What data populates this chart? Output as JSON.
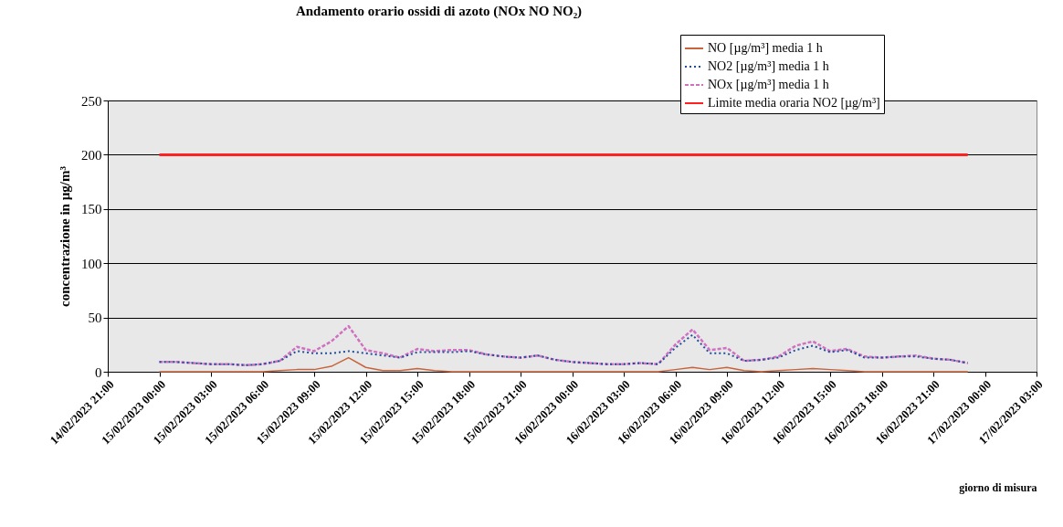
{
  "chart_data": {
    "type": "line",
    "title": "Andamento orario ossidi di azoto (NOx NO NO₂)",
    "xlabel": "giorno di misura",
    "ylabel": "concentrazione in µg/m³",
    "x": [
      "2023-02-15T00:00",
      "2023-02-15T01:00",
      "2023-02-15T02:00",
      "2023-02-15T03:00",
      "2023-02-15T04:00",
      "2023-02-15T05:00",
      "2023-02-15T06:00",
      "2023-02-15T07:00",
      "2023-02-15T08:00",
      "2023-02-15T09:00",
      "2023-02-15T10:00",
      "2023-02-15T11:00",
      "2023-02-15T12:00",
      "2023-02-15T13:00",
      "2023-02-15T14:00",
      "2023-02-15T15:00",
      "2023-02-15T16:00",
      "2023-02-15T17:00",
      "2023-02-15T18:00",
      "2023-02-15T19:00",
      "2023-02-15T20:00",
      "2023-02-15T21:00",
      "2023-02-15T22:00",
      "2023-02-15T23:00",
      "2023-02-16T00:00",
      "2023-02-16T01:00",
      "2023-02-16T02:00",
      "2023-02-16T03:00",
      "2023-02-16T04:00",
      "2023-02-16T05:00",
      "2023-02-16T06:00",
      "2023-02-16T07:00",
      "2023-02-16T08:00",
      "2023-02-16T09:00",
      "2023-02-16T10:00",
      "2023-02-16T11:00",
      "2023-02-16T12:00",
      "2023-02-16T13:00",
      "2023-02-16T14:00",
      "2023-02-16T15:00",
      "2023-02-16T16:00",
      "2023-02-16T17:00",
      "2023-02-16T18:00",
      "2023-02-16T19:00",
      "2023-02-16T20:00",
      "2023-02-16T21:00",
      "2023-02-16T22:00",
      "2023-02-16T23:00"
    ],
    "series": [
      {
        "name": "NO [µg/m³]   media 1 h",
        "color": "#c8643c",
        "line_style": "solid",
        "values": [
          0,
          0,
          0,
          0,
          0,
          0,
          0,
          1,
          2,
          2,
          5,
          13,
          4,
          1,
          1,
          3,
          1,
          0,
          0,
          0,
          0,
          0,
          0,
          0,
          0,
          0,
          0,
          0,
          0,
          0,
          2,
          4,
          2,
          4,
          1,
          0,
          1,
          2,
          3,
          2,
          1,
          0,
          0,
          0,
          0,
          0,
          0,
          0
        ]
      },
      {
        "name": "NO2 [µg/m³]   media 1 h",
        "color": "#1f4e9c",
        "line_style": "dotted",
        "values": [
          9,
          9,
          8,
          7,
          7,
          6,
          7,
          10,
          19,
          17,
          17,
          19,
          17,
          15,
          13,
          18,
          18,
          18,
          19,
          16,
          14,
          13,
          15,
          11,
          9,
          8,
          7,
          7,
          8,
          7,
          22,
          34,
          17,
          17,
          10,
          11,
          13,
          20,
          24,
          18,
          20,
          13,
          13,
          14,
          14,
          12,
          11,
          8
        ]
      },
      {
        "name": "NOx [µg/m³]   media 1 h",
        "color": "#d070c0",
        "line_style": "dashed",
        "values": [
          9,
          9,
          8,
          7,
          7,
          6,
          7,
          10,
          23,
          19,
          28,
          42,
          20,
          17,
          13,
          21,
          19,
          20,
          20,
          16,
          14,
          13,
          15,
          11,
          9,
          8,
          7,
          7,
          8,
          7,
          25,
          39,
          20,
          22,
          10,
          11,
          14,
          24,
          28,
          19,
          21,
          14,
          13,
          14,
          15,
          12,
          11,
          8
        ]
      },
      {
        "name": "Limite media oraria NO2 [µg/m³]",
        "color": "#ff2020",
        "line_style": "solid",
        "x": [
          "2023-02-15T00:00",
          "2023-02-16T23:00"
        ],
        "values": [
          200,
          200
        ]
      }
    ],
    "xlim": [
      "2023-02-14T21:00",
      "2023-02-17T03:00"
    ],
    "xticks": [
      {
        "value": "2023-02-14T21:00",
        "label": "14/02/2023 21:00"
      },
      {
        "value": "2023-02-15T00:00",
        "label": "15/02/2023 00:00"
      },
      {
        "value": "2023-02-15T03:00",
        "label": "15/02/2023 03:00"
      },
      {
        "value": "2023-02-15T06:00",
        "label": "15/02/2023 06:00"
      },
      {
        "value": "2023-02-15T09:00",
        "label": "15/02/2023 09:00"
      },
      {
        "value": "2023-02-15T12:00",
        "label": "15/02/2023 12:00"
      },
      {
        "value": "2023-02-15T15:00",
        "label": "15/02/2023 15:00"
      },
      {
        "value": "2023-02-15T18:00",
        "label": "15/02/2023 18:00"
      },
      {
        "value": "2023-02-15T21:00",
        "label": "15/02/2023 21:00"
      },
      {
        "value": "2023-02-16T00:00",
        "label": "16/02/2023 00:00"
      },
      {
        "value": "2023-02-16T03:00",
        "label": "16/02/2023 03:00"
      },
      {
        "value": "2023-02-16T06:00",
        "label": "16/02/2023 06:00"
      },
      {
        "value": "2023-02-16T09:00",
        "label": "16/02/2023 09:00"
      },
      {
        "value": "2023-02-16T12:00",
        "label": "16/02/2023 12:00"
      },
      {
        "value": "2023-02-16T15:00",
        "label": "16/02/2023 15:00"
      },
      {
        "value": "2023-02-16T18:00",
        "label": "16/02/2023 18:00"
      },
      {
        "value": "2023-02-16T21:00",
        "label": "16/02/2023 21:00"
      },
      {
        "value": "2023-02-17T00:00",
        "label": "17/02/2023 00:00"
      },
      {
        "value": "2023-02-17T03:00",
        "label": "17/02/2023 03:00"
      }
    ],
    "ylim": [
      0,
      250
    ],
    "yticks": [
      0,
      50,
      100,
      150,
      200,
      250
    ],
    "grid": "y",
    "legend": "top right"
  }
}
